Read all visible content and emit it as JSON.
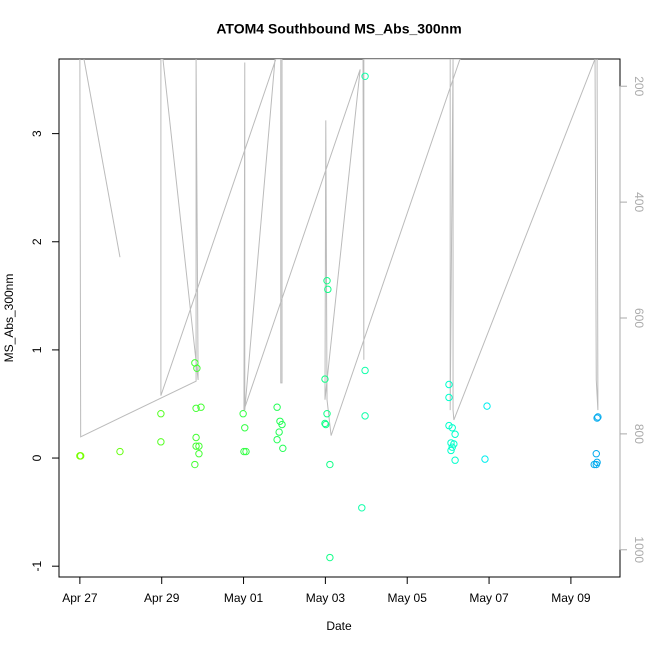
{
  "chart_data": {
    "type": "scatter",
    "title": "ATOM4 Southbound MS_Abs_300nm",
    "x_label": "Date",
    "y_label": "MS_Abs_300nm",
    "xlim": [
      -0.51,
      13.2
    ],
    "xticks": [
      {
        "value": 0,
        "label": "Apr 27"
      },
      {
        "value": 2,
        "label": "Apr 29"
      },
      {
        "value": 4,
        "label": "May 01"
      },
      {
        "value": 6,
        "label": "May 03"
      },
      {
        "value": 8,
        "label": "May 05"
      },
      {
        "value": 10,
        "label": "May 07"
      },
      {
        "value": 12,
        "label": "May 09"
      }
    ],
    "ylim": [
      -1.1,
      3.69
    ],
    "yticks": [
      -1,
      0,
      1,
      2,
      3
    ],
    "y2lim": [
      1047,
      153
    ],
    "y2ticks": [
      200,
      400,
      600,
      800,
      1000
    ],
    "y2_color": "#aaaaaa",
    "points": {
      "x": [
        0,
        0.02,
        0.98,
        1.98,
        1.98,
        2.81,
        2.86,
        2.84,
        2.96,
        2.84,
        2.84,
        2.91,
        2.91,
        2.81,
        3.99,
        4.03,
        4.01,
        4.06,
        4.82,
        4.89,
        4.94,
        4.87,
        4.82,
        4.96,
        6.04,
        6.06,
        5.99,
        6.04,
        5.99,
        6.01,
        6.11,
        6.11,
        6.89,
        6.97,
        6.97,
        6.97,
        9.02,
        9.02,
        9.02,
        9.1,
        9.17,
        9.07,
        9.1,
        9.14,
        9.07,
        9.17,
        9.95,
        9.9,
        12.66,
        12.64,
        12.62,
        12.64,
        12.57,
        12.62
      ],
      "y": [
        0.02,
        0.02,
        0.06,
        0.41,
        0.15,
        0.88,
        0.83,
        0.46,
        0.47,
        0.19,
        0.11,
        0.11,
        0.04,
        -0.06,
        0.41,
        0.28,
        0.06,
        0.06,
        0.47,
        0.34,
        0.31,
        0.24,
        0.17,
        0.09,
        1.64,
        1.56,
        0.73,
        0.41,
        0.32,
        0.31,
        -0.06,
        -0.92,
        -0.46,
        3.53,
        0.81,
        0.39,
        0.68,
        0.56,
        0.3,
        0.28,
        0.22,
        0.14,
        0.1,
        0.13,
        0.07,
        -0.02,
        0.48,
        -0.01,
        0.38,
        0.37,
        0.04,
        -0.04,
        -0.06,
        -0.06
      ],
      "colors": [
        "#77ff00",
        "#77ff00",
        "#66ff11",
        "#55ff22",
        "#55ff22",
        "#44ff33",
        "#44ff33",
        "#44ff33",
        "#44ff33",
        "#44ff33",
        "#44ff33",
        "#44ff33",
        "#44ff33",
        "#44ff33",
        "#33ff44",
        "#33ff44",
        "#33ff44",
        "#33ff44",
        "#22ff55",
        "#22ff55",
        "#22ff55",
        "#22ff55",
        "#22ff55",
        "#22ff55",
        "#11ff88",
        "#11ff88",
        "#11ff88",
        "#11ff88",
        "#11ff88",
        "#11ff88",
        "#11ff88",
        "#11ff88",
        "#11ffaa",
        "#11ffaa",
        "#11ffaa",
        "#11ffaa",
        "#00ffcc",
        "#00ffcc",
        "#00ffcc",
        "#00ffcc",
        "#00ffcc",
        "#00ffcc",
        "#00ffcc",
        "#00ffcc",
        "#00ffcc",
        "#00ffcc",
        "#00eeee",
        "#00eeee",
        "#00aaee",
        "#00aaee",
        "#00aaee",
        "#00aaee",
        "#00aaee",
        "#00aaee"
      ]
    },
    "line": {
      "color": "#bbbbbb",
      "x": [
        0.1,
        0.98,
        null,
        0,
        0.02,
        2.84,
        2.84,
        2.89,
        2.03,
        1.98,
        1.98,
        4.79,
        4.91,
        4.91,
        4.94,
        4.94,
        4.77,
        4.03,
        4.03,
        4.01,
        6.85,
        5.99,
        6.01,
        6.04,
        6.14,
        9.29,
        6.94,
        6.94,
        6.92,
        9.05,
        9.05,
        9.12,
        9.12,
        9.14,
        12.59,
        12.62,
        12.66,
        12.64
      ],
      "y2": [
        153,
        495,
        null,
        153,
        805,
        709,
        153,
        707,
        153,
        153,
        734,
        153,
        153,
        712,
        712,
        153,
        153,
        759,
        159,
        759,
        171,
        741,
        259,
        741,
        803,
        153,
        153,
        672,
        153,
        153,
        759,
        153,
        759,
        776,
        153,
        707,
        759,
        153
      ]
    }
  }
}
